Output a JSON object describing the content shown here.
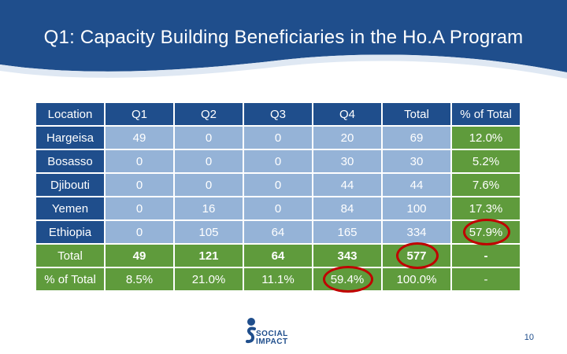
{
  "slide": {
    "title": "Q1: Capacity Building Beneficiaries in the Ho.A Program",
    "page_number": "10"
  },
  "logo": {
    "line1": "SOCIAL",
    "line2": "IMPACT"
  },
  "table": {
    "headers": [
      "Location",
      "Q1",
      "Q2",
      "Q3",
      "Q4",
      "Total",
      "% of Total"
    ],
    "rows": [
      {
        "location": "Hargeisa",
        "q1": "49",
        "q2": "0",
        "q3": "0",
        "q4": "20",
        "total": "69",
        "pct": "12.0%"
      },
      {
        "location": "Bosasso",
        "q1": "0",
        "q2": "0",
        "q3": "0",
        "q4": "30",
        "total": "30",
        "pct": "5.2%"
      },
      {
        "location": "Djibouti",
        "q1": "0",
        "q2": "0",
        "q3": "0",
        "q4": "44",
        "total": "44",
        "pct": "7.6%"
      },
      {
        "location": "Yemen",
        "q1": "0",
        "q2": "16",
        "q3": "0",
        "q4": "84",
        "total": "100",
        "pct": "17.3%"
      },
      {
        "location": "Ethiopia",
        "q1": "0",
        "q2": "105",
        "q3": "64",
        "q4": "165",
        "total": "334",
        "pct": "57.9%"
      }
    ],
    "total_row": {
      "location": "Total",
      "q1": "49",
      "q2": "121",
      "q3": "64",
      "q4": "343",
      "total": "577",
      "pct": "-"
    },
    "pct_row": {
      "location": "% of Total",
      "q1": "8.5%",
      "q2": "21.0%",
      "q3": "11.1%",
      "q4": "59.4%",
      "total": "100.0%",
      "pct": "-"
    }
  },
  "colors": {
    "header_blue": "#1f4e8c",
    "cell_light_blue": "#95b3d7",
    "green": "#5f9b3c",
    "highlight_red": "#c00000"
  }
}
